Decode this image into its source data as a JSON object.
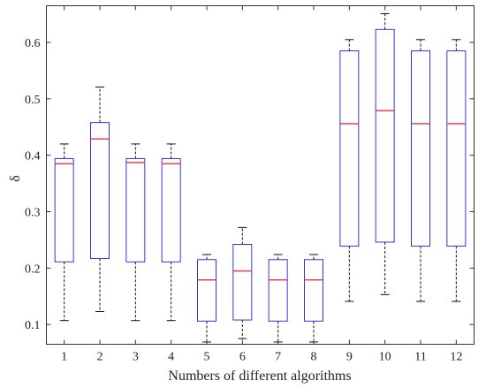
{
  "chart_data": {
    "type": "boxplot",
    "xlabel": "Numbers of different algorithms",
    "ylabel": "δ",
    "ylim": [
      0.065,
      0.665
    ],
    "yticks": [
      0.1,
      0.2,
      0.3,
      0.4,
      0.5,
      0.6
    ],
    "categories": [
      "1",
      "2",
      "3",
      "4",
      "5",
      "6",
      "7",
      "8",
      "9",
      "10",
      "11",
      "12"
    ],
    "boxes": [
      {
        "whisker_low": 0.107,
        "q1": 0.211,
        "median": 0.385,
        "q3": 0.394,
        "whisker_high": 0.42
      },
      {
        "whisker_low": 0.123,
        "q1": 0.217,
        "median": 0.429,
        "q3": 0.458,
        "whisker_high": 0.521
      },
      {
        "whisker_low": 0.107,
        "q1": 0.211,
        "median": 0.387,
        "q3": 0.394,
        "whisker_high": 0.42
      },
      {
        "whisker_low": 0.107,
        "q1": 0.211,
        "median": 0.385,
        "q3": 0.394,
        "whisker_high": 0.42
      },
      {
        "whisker_low": 0.069,
        "q1": 0.106,
        "median": 0.179,
        "q3": 0.215,
        "whisker_high": 0.224
      },
      {
        "whisker_low": 0.075,
        "q1": 0.108,
        "median": 0.195,
        "q3": 0.242,
        "whisker_high": 0.272
      },
      {
        "whisker_low": 0.069,
        "q1": 0.106,
        "median": 0.179,
        "q3": 0.215,
        "whisker_high": 0.224
      },
      {
        "whisker_low": 0.069,
        "q1": 0.106,
        "median": 0.179,
        "q3": 0.215,
        "whisker_high": 0.224
      },
      {
        "whisker_low": 0.141,
        "q1": 0.239,
        "median": 0.456,
        "q3": 0.585,
        "whisker_high": 0.605
      },
      {
        "whisker_low": 0.153,
        "q1": 0.246,
        "median": 0.479,
        "q3": 0.623,
        "whisker_high": 0.651
      },
      {
        "whisker_low": 0.141,
        "q1": 0.239,
        "median": 0.456,
        "q3": 0.585,
        "whisker_high": 0.605
      },
      {
        "whisker_low": 0.141,
        "q1": 0.239,
        "median": 0.456,
        "q3": 0.585,
        "whisker_high": 0.605
      }
    ],
    "colors": {
      "box": "#3333e6",
      "median": "#e8333a",
      "whisker": "#111111",
      "axes": "#333333"
    },
    "grid": false,
    "legend": "none"
  }
}
